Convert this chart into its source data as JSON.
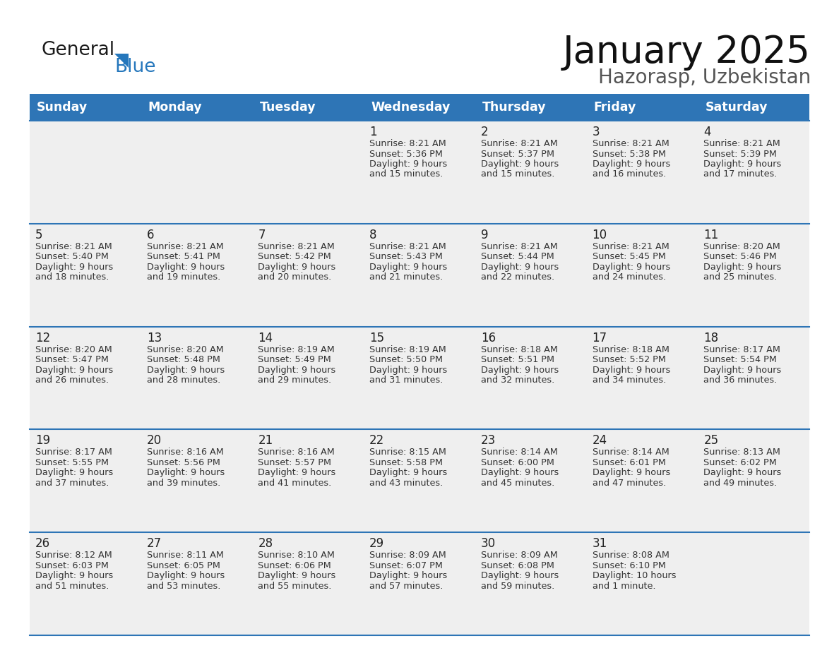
{
  "title": "January 2025",
  "subtitle": "Hazorasp, Uzbekistan",
  "header_color": "#2E75B6",
  "header_text_color": "#FFFFFF",
  "days_of_week": [
    "Sunday",
    "Monday",
    "Tuesday",
    "Wednesday",
    "Thursday",
    "Friday",
    "Saturday"
  ],
  "background_color": "#FFFFFF",
  "cell_bg": "#EFEFEF",
  "row_line_color": "#2E75B6",
  "text_color": "#333333",
  "day_num_color": "#222222",
  "calendar_data": [
    [
      {
        "day": "",
        "lines": []
      },
      {
        "day": "",
        "lines": []
      },
      {
        "day": "",
        "lines": []
      },
      {
        "day": "1",
        "lines": [
          "Sunrise: 8:21 AM",
          "Sunset: 5:36 PM",
          "Daylight: 9 hours",
          "and 15 minutes."
        ]
      },
      {
        "day": "2",
        "lines": [
          "Sunrise: 8:21 AM",
          "Sunset: 5:37 PM",
          "Daylight: 9 hours",
          "and 15 minutes."
        ]
      },
      {
        "day": "3",
        "lines": [
          "Sunrise: 8:21 AM",
          "Sunset: 5:38 PM",
          "Daylight: 9 hours",
          "and 16 minutes."
        ]
      },
      {
        "day": "4",
        "lines": [
          "Sunrise: 8:21 AM",
          "Sunset: 5:39 PM",
          "Daylight: 9 hours",
          "and 17 minutes."
        ]
      }
    ],
    [
      {
        "day": "5",
        "lines": [
          "Sunrise: 8:21 AM",
          "Sunset: 5:40 PM",
          "Daylight: 9 hours",
          "and 18 minutes."
        ]
      },
      {
        "day": "6",
        "lines": [
          "Sunrise: 8:21 AM",
          "Sunset: 5:41 PM",
          "Daylight: 9 hours",
          "and 19 minutes."
        ]
      },
      {
        "day": "7",
        "lines": [
          "Sunrise: 8:21 AM",
          "Sunset: 5:42 PM",
          "Daylight: 9 hours",
          "and 20 minutes."
        ]
      },
      {
        "day": "8",
        "lines": [
          "Sunrise: 8:21 AM",
          "Sunset: 5:43 PM",
          "Daylight: 9 hours",
          "and 21 minutes."
        ]
      },
      {
        "day": "9",
        "lines": [
          "Sunrise: 8:21 AM",
          "Sunset: 5:44 PM",
          "Daylight: 9 hours",
          "and 22 minutes."
        ]
      },
      {
        "day": "10",
        "lines": [
          "Sunrise: 8:21 AM",
          "Sunset: 5:45 PM",
          "Daylight: 9 hours",
          "and 24 minutes."
        ]
      },
      {
        "day": "11",
        "lines": [
          "Sunrise: 8:20 AM",
          "Sunset: 5:46 PM",
          "Daylight: 9 hours",
          "and 25 minutes."
        ]
      }
    ],
    [
      {
        "day": "12",
        "lines": [
          "Sunrise: 8:20 AM",
          "Sunset: 5:47 PM",
          "Daylight: 9 hours",
          "and 26 minutes."
        ]
      },
      {
        "day": "13",
        "lines": [
          "Sunrise: 8:20 AM",
          "Sunset: 5:48 PM",
          "Daylight: 9 hours",
          "and 28 minutes."
        ]
      },
      {
        "day": "14",
        "lines": [
          "Sunrise: 8:19 AM",
          "Sunset: 5:49 PM",
          "Daylight: 9 hours",
          "and 29 minutes."
        ]
      },
      {
        "day": "15",
        "lines": [
          "Sunrise: 8:19 AM",
          "Sunset: 5:50 PM",
          "Daylight: 9 hours",
          "and 31 minutes."
        ]
      },
      {
        "day": "16",
        "lines": [
          "Sunrise: 8:18 AM",
          "Sunset: 5:51 PM",
          "Daylight: 9 hours",
          "and 32 minutes."
        ]
      },
      {
        "day": "17",
        "lines": [
          "Sunrise: 8:18 AM",
          "Sunset: 5:52 PM",
          "Daylight: 9 hours",
          "and 34 minutes."
        ]
      },
      {
        "day": "18",
        "lines": [
          "Sunrise: 8:17 AM",
          "Sunset: 5:54 PM",
          "Daylight: 9 hours",
          "and 36 minutes."
        ]
      }
    ],
    [
      {
        "day": "19",
        "lines": [
          "Sunrise: 8:17 AM",
          "Sunset: 5:55 PM",
          "Daylight: 9 hours",
          "and 37 minutes."
        ]
      },
      {
        "day": "20",
        "lines": [
          "Sunrise: 8:16 AM",
          "Sunset: 5:56 PM",
          "Daylight: 9 hours",
          "and 39 minutes."
        ]
      },
      {
        "day": "21",
        "lines": [
          "Sunrise: 8:16 AM",
          "Sunset: 5:57 PM",
          "Daylight: 9 hours",
          "and 41 minutes."
        ]
      },
      {
        "day": "22",
        "lines": [
          "Sunrise: 8:15 AM",
          "Sunset: 5:58 PM",
          "Daylight: 9 hours",
          "and 43 minutes."
        ]
      },
      {
        "day": "23",
        "lines": [
          "Sunrise: 8:14 AM",
          "Sunset: 6:00 PM",
          "Daylight: 9 hours",
          "and 45 minutes."
        ]
      },
      {
        "day": "24",
        "lines": [
          "Sunrise: 8:14 AM",
          "Sunset: 6:01 PM",
          "Daylight: 9 hours",
          "and 47 minutes."
        ]
      },
      {
        "day": "25",
        "lines": [
          "Sunrise: 8:13 AM",
          "Sunset: 6:02 PM",
          "Daylight: 9 hours",
          "and 49 minutes."
        ]
      }
    ],
    [
      {
        "day": "26",
        "lines": [
          "Sunrise: 8:12 AM",
          "Sunset: 6:03 PM",
          "Daylight: 9 hours",
          "and 51 minutes."
        ]
      },
      {
        "day": "27",
        "lines": [
          "Sunrise: 8:11 AM",
          "Sunset: 6:05 PM",
          "Daylight: 9 hours",
          "and 53 minutes."
        ]
      },
      {
        "day": "28",
        "lines": [
          "Sunrise: 8:10 AM",
          "Sunset: 6:06 PM",
          "Daylight: 9 hours",
          "and 55 minutes."
        ]
      },
      {
        "day": "29",
        "lines": [
          "Sunrise: 8:09 AM",
          "Sunset: 6:07 PM",
          "Daylight: 9 hours",
          "and 57 minutes."
        ]
      },
      {
        "day": "30",
        "lines": [
          "Sunrise: 8:09 AM",
          "Sunset: 6:08 PM",
          "Daylight: 9 hours",
          "and 59 minutes."
        ]
      },
      {
        "day": "31",
        "lines": [
          "Sunrise: 8:08 AM",
          "Sunset: 6:10 PM",
          "Daylight: 10 hours",
          "and 1 minute."
        ]
      },
      {
        "day": "",
        "lines": []
      }
    ]
  ]
}
